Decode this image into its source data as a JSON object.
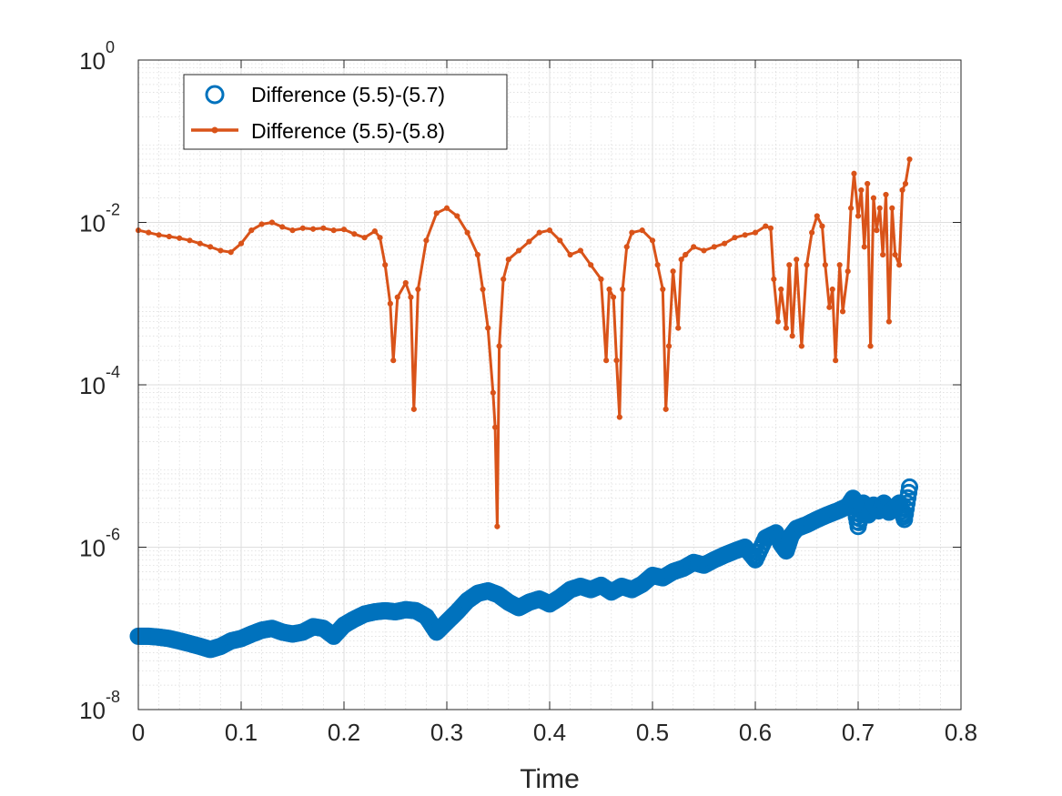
{
  "chart_data": {
    "type": "line",
    "title": "",
    "xlabel": "Time",
    "ylabel": "",
    "xlim": [
      0,
      0.8
    ],
    "ylim": [
      1e-08,
      1
    ],
    "yscale": "log",
    "grid": true,
    "minor_grid": true,
    "legend_position": "top-left",
    "x_ticks": [
      {
        "value": 0,
        "label": "0"
      },
      {
        "value": 0.1,
        "label": "0.1"
      },
      {
        "value": 0.2,
        "label": "0.2"
      },
      {
        "value": 0.3,
        "label": "0.3"
      },
      {
        "value": 0.4,
        "label": "0.4"
      },
      {
        "value": 0.5,
        "label": "0.5"
      },
      {
        "value": 0.6,
        "label": "0.6"
      },
      {
        "value": 0.7,
        "label": "0.7"
      },
      {
        "value": 0.8,
        "label": "0.8"
      }
    ],
    "y_ticks": [
      {
        "value": 1e-08,
        "base": "10",
        "exp": "-8"
      },
      {
        "value": 1e-06,
        "base": "10",
        "exp": "-6"
      },
      {
        "value": 0.0001,
        "base": "10",
        "exp": "-4"
      },
      {
        "value": 0.01,
        "base": "10",
        "exp": "-2"
      },
      {
        "value": 1,
        "base": "10",
        "exp": "0"
      }
    ],
    "series": [
      {
        "name": "Difference (5.5)-(5.7)",
        "style": "circles",
        "color": "#0072BD",
        "x": [
          0,
          0.01,
          0.02,
          0.03,
          0.04,
          0.05,
          0.06,
          0.07,
          0.08,
          0.09,
          0.1,
          0.11,
          0.12,
          0.13,
          0.14,
          0.15,
          0.16,
          0.17,
          0.18,
          0.19,
          0.2,
          0.21,
          0.22,
          0.23,
          0.24,
          0.25,
          0.26,
          0.27,
          0.28,
          0.29,
          0.3,
          0.31,
          0.32,
          0.33,
          0.34,
          0.35,
          0.36,
          0.37,
          0.38,
          0.39,
          0.4,
          0.41,
          0.42,
          0.43,
          0.44,
          0.45,
          0.46,
          0.47,
          0.48,
          0.49,
          0.5,
          0.51,
          0.52,
          0.53,
          0.54,
          0.55,
          0.56,
          0.57,
          0.58,
          0.59,
          0.6,
          0.61,
          0.62,
          0.625,
          0.63,
          0.635,
          0.64,
          0.65,
          0.66,
          0.67,
          0.68,
          0.69,
          0.695,
          0.7,
          0.705,
          0.71,
          0.715,
          0.72,
          0.725,
          0.73,
          0.735,
          0.74,
          0.745,
          0.75
        ],
        "values": [
          8e-08,
          8e-08,
          7.8e-08,
          7.5e-08,
          7e-08,
          6.5e-08,
          6e-08,
          5.5e-08,
          6e-08,
          7e-08,
          7.5e-08,
          8.5e-08,
          9.5e-08,
          1e-07,
          9e-08,
          8.5e-08,
          9e-08,
          1.05e-07,
          1e-07,
          8e-08,
          1.1e-07,
          1.3e-07,
          1.5e-07,
          1.6e-07,
          1.65e-07,
          1.6e-07,
          1.7e-07,
          1.65e-07,
          1.4e-07,
          9e-08,
          1.2e-07,
          1.6e-07,
          2.2e-07,
          2.7e-07,
          2.9e-07,
          2.6e-07,
          2.1e-07,
          1.8e-07,
          2.1e-07,
          2.3e-07,
          2e-07,
          2.4e-07,
          3e-07,
          3.3e-07,
          3e-07,
          3.4e-07,
          2.8e-07,
          3.3e-07,
          3e-07,
          3.5e-07,
          4.5e-07,
          4.2e-07,
          5e-07,
          5.5e-07,
          6.5e-07,
          6e-07,
          7e-07,
          8e-07,
          9e-07,
          1e-06,
          7e-07,
          1.3e-06,
          1.5e-06,
          1.1e-06,
          9e-07,
          1.4e-06,
          1.7e-06,
          1.9e-06,
          2.2e-06,
          2.5e-06,
          2.8e-06,
          3.2e-06,
          4e-06,
          1.8e-06,
          3.5e-06,
          2.5e-06,
          3.3e-06,
          2.8e-06,
          3.5e-06,
          2.7e-06,
          3e-06,
          3.5e-06,
          2.2e-06,
          5.5e-06
        ]
      },
      {
        "name": "Difference (5.5)-(5.8)",
        "style": "line-dots",
        "color": "#D95319",
        "x": [
          0,
          0.01,
          0.02,
          0.03,
          0.04,
          0.05,
          0.06,
          0.07,
          0.08,
          0.09,
          0.1,
          0.11,
          0.12,
          0.13,
          0.14,
          0.15,
          0.16,
          0.17,
          0.18,
          0.19,
          0.2,
          0.21,
          0.22,
          0.23,
          0.235,
          0.24,
          0.245,
          0.248,
          0.252,
          0.26,
          0.265,
          0.268,
          0.272,
          0.28,
          0.29,
          0.3,
          0.31,
          0.32,
          0.33,
          0.335,
          0.34,
          0.345,
          0.347,
          0.349,
          0.351,
          0.355,
          0.36,
          0.37,
          0.38,
          0.39,
          0.4,
          0.41,
          0.42,
          0.43,
          0.44,
          0.45,
          0.455,
          0.458,
          0.462,
          0.465,
          0.468,
          0.471,
          0.475,
          0.48,
          0.49,
          0.5,
          0.505,
          0.51,
          0.513,
          0.516,
          0.52,
          0.525,
          0.528,
          0.532,
          0.54,
          0.55,
          0.56,
          0.57,
          0.58,
          0.59,
          0.6,
          0.61,
          0.615,
          0.618,
          0.622,
          0.625,
          0.63,
          0.633,
          0.636,
          0.64,
          0.645,
          0.65,
          0.655,
          0.66,
          0.665,
          0.668,
          0.672,
          0.675,
          0.678,
          0.682,
          0.685,
          0.69,
          0.693,
          0.696,
          0.7,
          0.703,
          0.706,
          0.709,
          0.712,
          0.715,
          0.718,
          0.721,
          0.724,
          0.727,
          0.73,
          0.733,
          0.736,
          0.74,
          0.743,
          0.746,
          0.75
        ],
        "values": [
          0.008,
          0.0075,
          0.007,
          0.0067,
          0.0064,
          0.006,
          0.0055,
          0.005,
          0.0045,
          0.0043,
          0.0055,
          0.008,
          0.0095,
          0.01,
          0.0088,
          0.008,
          0.0085,
          0.0083,
          0.0085,
          0.008,
          0.0082,
          0.0072,
          0.0065,
          0.0078,
          0.0065,
          0.003,
          0.001,
          0.0002,
          0.0012,
          0.0018,
          0.0012,
          5e-05,
          0.0015,
          0.006,
          0.013,
          0.015,
          0.012,
          0.0075,
          0.004,
          0.0015,
          0.0005,
          8e-05,
          3e-05,
          1.8e-06,
          0.0003,
          0.002,
          0.0035,
          0.0045,
          0.0058,
          0.0075,
          0.008,
          0.006,
          0.004,
          0.0045,
          0.003,
          0.002,
          0.0002,
          0.0015,
          0.0012,
          0.0002,
          4e-05,
          0.0015,
          0.005,
          0.0075,
          0.008,
          0.006,
          0.003,
          0.0015,
          5e-05,
          0.0003,
          0.0025,
          0.0005,
          0.0035,
          0.004,
          0.005,
          0.0045,
          0.005,
          0.0055,
          0.0065,
          0.007,
          0.0075,
          0.009,
          0.0085,
          0.002,
          0.0006,
          0.0015,
          0.0005,
          0.003,
          0.0004,
          0.0035,
          0.0003,
          0.003,
          0.0075,
          0.012,
          0.009,
          0.003,
          0.0009,
          0.0015,
          0.0002,
          0.003,
          0.0008,
          0.0025,
          0.015,
          0.04,
          0.012,
          0.025,
          0.005,
          0.03,
          0.0003,
          0.02,
          0.008,
          0.015,
          0.004,
          0.022,
          0.0006,
          0.015,
          0.004,
          0.003,
          0.025,
          0.03,
          0.06
        ]
      }
    ]
  }
}
